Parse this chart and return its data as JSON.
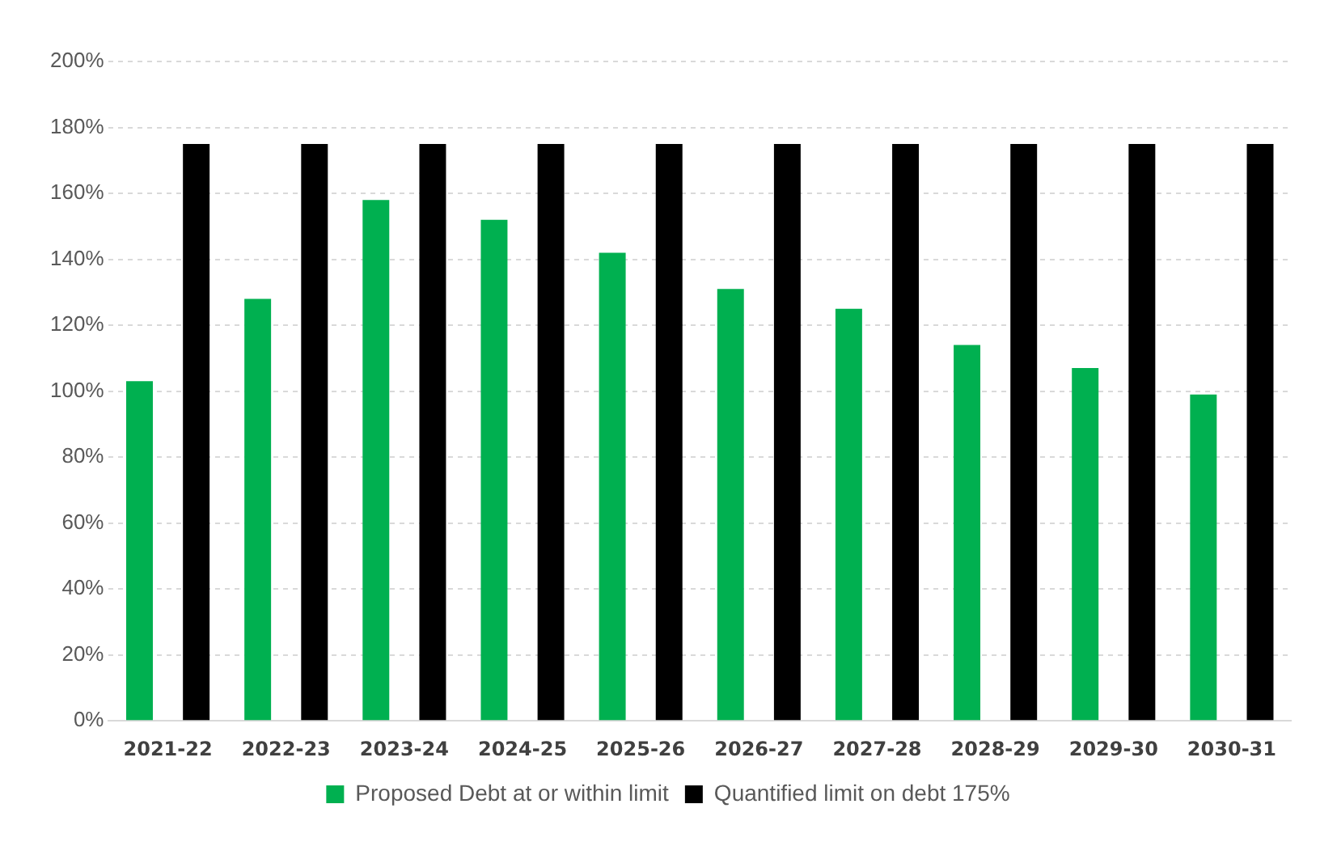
{
  "chart_data": {
    "type": "bar",
    "categories": [
      "2021-22",
      "2022-23",
      "2023-24",
      "2024-25",
      "2025-26",
      "2026-27",
      "2027-28",
      "2028-29",
      "2029-30",
      "2030-31"
    ],
    "series": [
      {
        "name": "Proposed Debt at or within limit",
        "color": "#00b050",
        "values": [
          103,
          128,
          158,
          152,
          142,
          131,
          125,
          114,
          107,
          99
        ]
      },
      {
        "name": "Quantified limit on debt 175%",
        "color": "#000000",
        "values": [
          175,
          175,
          175,
          175,
          175,
          175,
          175,
          175,
          175,
          175
        ]
      }
    ],
    "ylim": [
      0,
      200
    ],
    "yticks": [
      {
        "value": 0,
        "label": "0%"
      },
      {
        "value": 20,
        "label": "20%"
      },
      {
        "value": 40,
        "label": "40%"
      },
      {
        "value": 60,
        "label": "60%"
      },
      {
        "value": 80,
        "label": "80%"
      },
      {
        "value": 100,
        "label": "100%"
      },
      {
        "value": 120,
        "label": "120%"
      },
      {
        "value": 140,
        "label": "140%"
      },
      {
        "value": 160,
        "label": "160%"
      },
      {
        "value": 180,
        "label": "180%"
      },
      {
        "value": 200,
        "label": "200%"
      }
    ],
    "grid": "y",
    "legend": "bottom"
  }
}
